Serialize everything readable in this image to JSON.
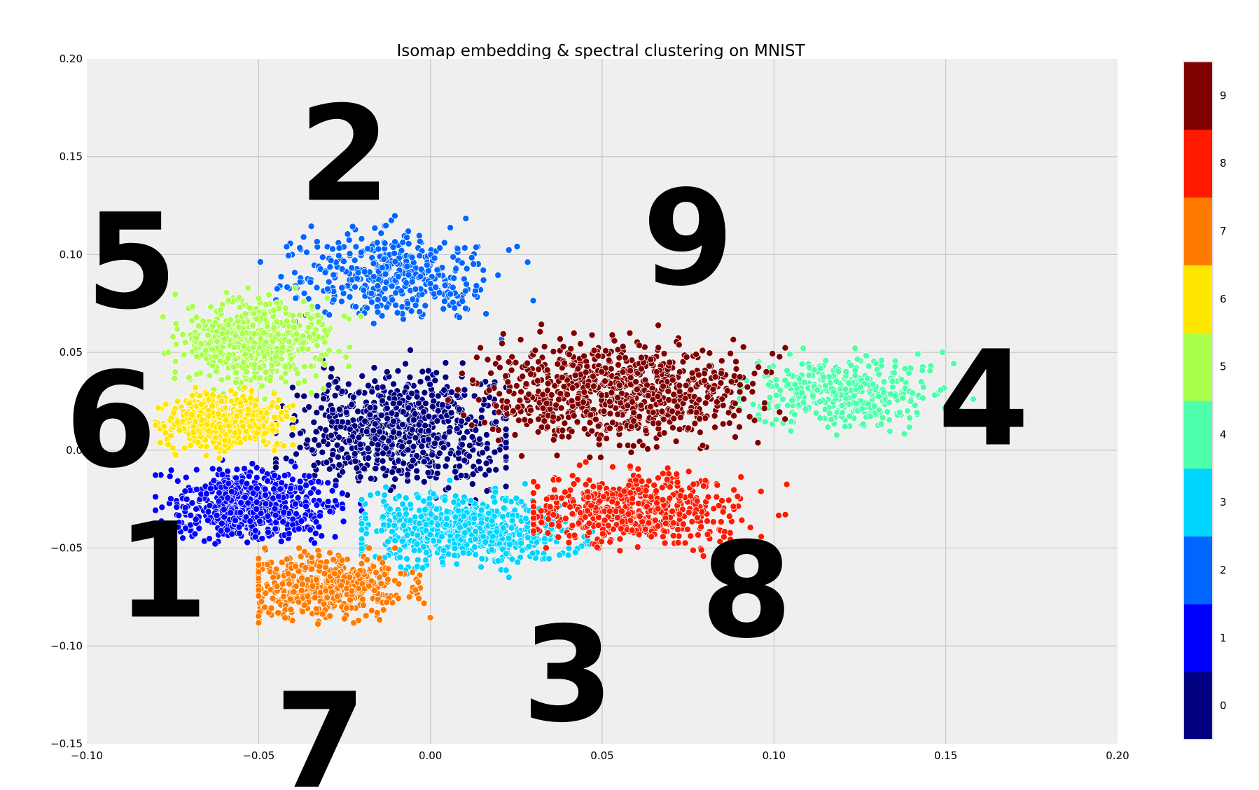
{
  "chart_data": {
    "type": "scatter",
    "title": "Isomap embedding & spectral clustering on MNIST",
    "xlabel": "",
    "ylabel": "",
    "xlim": [
      -0.1,
      0.2
    ],
    "ylim": [
      -0.15,
      0.2
    ],
    "grid": true,
    "x_ticks": [
      "−0.10",
      "−0.05",
      "0.00",
      "0.05",
      "0.10",
      "0.15",
      "0.20"
    ],
    "y_ticks": [
      "0.20",
      "0.15",
      "0.10",
      "0.05",
      "0.0",
      "−0.05",
      "−0.10",
      "−0.15"
    ],
    "colorbar": {
      "labels": [
        "0",
        "1",
        "2",
        "3",
        "4",
        "5",
        "6",
        "7",
        "8",
        "9"
      ],
      "colors": [
        "#000080",
        "#0000ff",
        "#0066ff",
        "#00d5ff",
        "#4dffaa",
        "#aaff4d",
        "#ffe600",
        "#ff7b00",
        "#ff1a00",
        "#800000"
      ]
    },
    "series": [
      {
        "cluster": "0",
        "color": "#000080",
        "center": [
          -0.008,
          0.01
        ],
        "spread": [
          0.032,
          0.028
        ],
        "range": [
          [
            -0.045,
            0.022
          ],
          [
            -0.03,
            0.055
          ]
        ],
        "count": 780
      },
      {
        "cluster": "1",
        "color": "#0000ff",
        "center": [
          -0.052,
          -0.028
        ],
        "spread": [
          0.024,
          0.018
        ],
        "range": [
          [
            -0.08,
            -0.02
          ],
          [
            -0.06,
            -0.005
          ]
        ],
        "count": 620
      },
      {
        "cluster": "2",
        "color": "#0066ff",
        "center": [
          -0.012,
          0.09
        ],
        "spread": [
          0.028,
          0.022
        ],
        "range": [
          [
            -0.055,
            0.035
          ],
          [
            0.055,
            0.145
          ]
        ],
        "count": 420
      },
      {
        "cluster": "3",
        "color": "#00d5ff",
        "center": [
          0.01,
          -0.04
        ],
        "spread": [
          0.03,
          0.018
        ],
        "range": [
          [
            -0.02,
            0.05
          ],
          [
            -0.095,
            -0.01
          ]
        ],
        "count": 620
      },
      {
        "cluster": "4",
        "color": "#4dffaa",
        "center": [
          0.12,
          0.03
        ],
        "spread": [
          0.028,
          0.018
        ],
        "range": [
          [
            0.09,
            0.158
          ],
          [
            -0.025,
            0.055
          ]
        ],
        "count": 380
      },
      {
        "cluster": "5",
        "color": "#aaff4d",
        "center": [
          -0.05,
          0.055
        ],
        "spread": [
          0.022,
          0.022
        ],
        "range": [
          [
            -0.08,
            -0.02
          ],
          [
            0.025,
            0.097
          ]
        ],
        "count": 520
      },
      {
        "cluster": "6",
        "color": "#ffe600",
        "center": [
          -0.06,
          0.015
        ],
        "spread": [
          0.018,
          0.014
        ],
        "range": [
          [
            -0.08,
            -0.04
          ],
          [
            -0.01,
            0.032
          ]
        ],
        "count": 500
      },
      {
        "cluster": "7",
        "color": "#ff7b00",
        "center": [
          -0.03,
          -0.07
        ],
        "spread": [
          0.024,
          0.016
        ],
        "range": [
          [
            -0.05,
            0.01
          ],
          [
            -0.115,
            -0.05
          ]
        ],
        "count": 480
      },
      {
        "cluster": "8",
        "color": "#ff1a00",
        "center": [
          0.06,
          -0.03
        ],
        "spread": [
          0.032,
          0.018
        ],
        "range": [
          [
            0.03,
            0.118
          ],
          [
            -0.065,
            0.0
          ]
        ],
        "count": 560
      },
      {
        "cluster": "9",
        "color": "#800000",
        "center": [
          0.055,
          0.03
        ],
        "spread": [
          0.038,
          0.025
        ],
        "range": [
          [
            0.005,
            0.105
          ],
          [
            -0.01,
            0.09
          ]
        ],
        "count": 820
      }
    ],
    "annotations": [
      {
        "text": "2",
        "x": -0.025,
        "y": 0.128
      },
      {
        "text": "5",
        "x": -0.087,
        "y": 0.073
      },
      {
        "text": "9",
        "x": 0.075,
        "y": 0.085
      },
      {
        "text": "6",
        "x": -0.093,
        "y": -0.008
      },
      {
        "text": "4",
        "x": 0.161,
        "y": 0.003
      },
      {
        "text": "1",
        "x": -0.078,
        "y": -0.085
      },
      {
        "text": "8",
        "x": 0.092,
        "y": -0.095
      },
      {
        "text": "3",
        "x": 0.04,
        "y": -0.138
      },
      {
        "text": "7",
        "x": -0.032,
        "y": -0.172
      }
    ]
  }
}
